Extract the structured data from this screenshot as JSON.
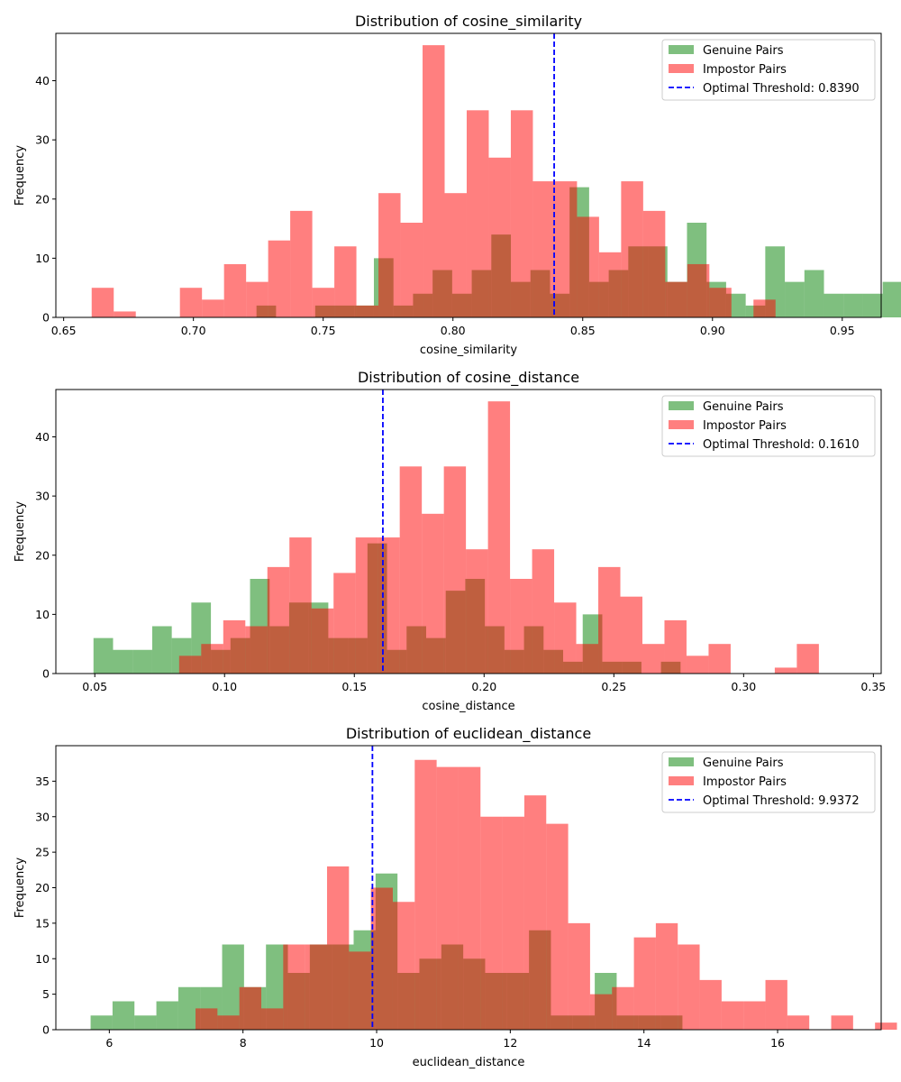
{
  "chart_data": [
    {
      "type": "histogram",
      "title": "Distribution of cosine_similarity",
      "xlabel": "cosine_similarity",
      "ylabel": "Frequency",
      "xlim": [
        0.647,
        0.965
      ],
      "ylim": [
        0,
        48
      ],
      "xticks": [
        0.65,
        0.7,
        0.75,
        0.8,
        0.85,
        0.9,
        0.95
      ],
      "xtick_labels": [
        "0.65",
        "0.70",
        "0.75",
        "0.80",
        "0.85",
        "0.90",
        "0.95"
      ],
      "yticks": [
        0,
        10,
        20,
        30,
        40
      ],
      "ytick_labels": [
        "0",
        "10",
        "20",
        "30",
        "40"
      ],
      "legend_position": "top-right",
      "threshold": {
        "value": 0.839,
        "label": "Optimal Threshold: 0.8390"
      },
      "series": [
        {
          "name": "Genuine Pairs",
          "color": "#008000",
          "bin_start": 0.7243,
          "bin_width": 0.00754,
          "counts": [
            2,
            0,
            0,
            2,
            2,
            2,
            10,
            2,
            4,
            8,
            4,
            8,
            14,
            6,
            8,
            4,
            22,
            6,
            8,
            12,
            12,
            6,
            16,
            6,
            4,
            2,
            12,
            6,
            8,
            4,
            4,
            4,
            6
          ]
        },
        {
          "name": "Impostor Pairs",
          "color": "#ff0000",
          "bin_start": 0.6608,
          "bin_width": 0.0085,
          "counts": [
            5,
            1,
            0,
            0,
            5,
            3,
            9,
            6,
            13,
            18,
            5,
            12,
            2,
            21,
            16,
            46,
            21,
            35,
            27,
            35,
            23,
            23,
            17,
            11,
            23,
            18,
            6,
            9,
            5,
            0,
            3
          ]
        }
      ]
    },
    {
      "type": "histogram",
      "title": "Distribution of cosine_distance",
      "xlabel": "cosine_distance",
      "ylabel": "Frequency",
      "xlim": [
        0.035,
        0.353
      ],
      "ylim": [
        0,
        48
      ],
      "xticks": [
        0.05,
        0.1,
        0.15,
        0.2,
        0.25,
        0.3,
        0.35
      ],
      "xtick_labels": [
        "0.05",
        "0.10",
        "0.15",
        "0.20",
        "0.25",
        "0.30",
        "0.35"
      ],
      "yticks": [
        0,
        10,
        20,
        30,
        40
      ],
      "ytick_labels": [
        "0",
        "10",
        "20",
        "30",
        "40"
      ],
      "legend_position": "top-right",
      "threshold": {
        "value": 0.161,
        "label": "Optimal Threshold: 0.1610"
      },
      "series": [
        {
          "name": "Genuine Pairs",
          "color": "#008000",
          "bin_start": 0.0495,
          "bin_width": 0.00754,
          "counts": [
            6,
            4,
            4,
            8,
            6,
            12,
            4,
            6,
            16,
            8,
            12,
            12,
            6,
            6,
            22,
            4,
            8,
            6,
            14,
            16,
            8,
            4,
            8,
            4,
            2,
            10,
            2,
            2,
            0,
            2
          ]
        },
        {
          "name": "Impostor Pairs",
          "color": "#ff0000",
          "bin_start": 0.0825,
          "bin_width": 0.0085,
          "counts": [
            3,
            5,
            9,
            8,
            18,
            23,
            11,
            17,
            23,
            23,
            35,
            27,
            35,
            21,
            46,
            16,
            21,
            12,
            5,
            18,
            13,
            5,
            9,
            3,
            5,
            0,
            0,
            1,
            5
          ]
        }
      ]
    },
    {
      "type": "histogram",
      "title": "Distribution of euclidean_distance",
      "xlabel": "euclidean_distance",
      "ylabel": "Frequency",
      "xlim": [
        5.2,
        17.55
      ],
      "ylim": [
        0,
        40
      ],
      "xticks": [
        6,
        8,
        10,
        12,
        14,
        16
      ],
      "xtick_labels": [
        "6",
        "8",
        "10",
        "12",
        "14",
        "16"
      ],
      "yticks": [
        0,
        5,
        10,
        15,
        20,
        25,
        30,
        35
      ],
      "ytick_labels": [
        "0",
        "5",
        "10",
        "15",
        "20",
        "25",
        "30",
        "35"
      ],
      "legend_position": "top-right",
      "threshold": {
        "value": 9.9372,
        "label": "Optimal Threshold: 9.9372"
      },
      "series": [
        {
          "name": "Genuine Pairs",
          "color": "#008000",
          "bin_start": 5.72,
          "bin_width": 0.328,
          "counts": [
            2,
            4,
            2,
            4,
            6,
            6,
            12,
            6,
            12,
            8,
            12,
            12,
            14,
            22,
            8,
            10,
            12,
            10,
            8,
            8,
            14,
            2,
            2,
            8,
            2,
            2,
            2
          ]
        },
        {
          "name": "Impostor Pairs",
          "color": "#ff0000",
          "bin_start": 7.29,
          "bin_width": 0.328,
          "counts": [
            3,
            2,
            6,
            3,
            12,
            12,
            23,
            11,
            20,
            18,
            38,
            37,
            37,
            30,
            30,
            33,
            29,
            15,
            5,
            6,
            13,
            15,
            12,
            7,
            4,
            4,
            7,
            2,
            0,
            2,
            0,
            1
          ]
        }
      ]
    }
  ]
}
